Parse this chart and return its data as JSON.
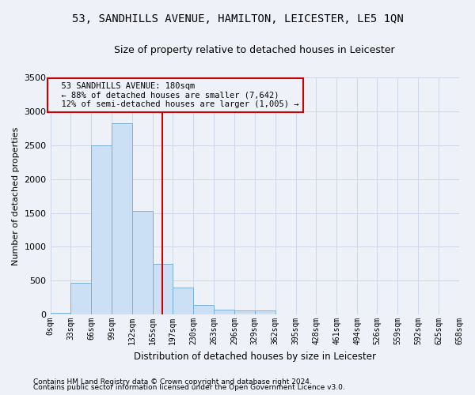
{
  "title": "53, SANDHILLS AVENUE, HAMILTON, LEICESTER, LE5 1QN",
  "subtitle": "Size of property relative to detached houses in Leicester",
  "xlabel": "Distribution of detached houses by size in Leicester",
  "ylabel": "Number of detached properties",
  "footnote1": "Contains HM Land Registry data © Crown copyright and database right 2024.",
  "footnote2": "Contains public sector information licensed under the Open Government Licence v3.0.",
  "annotation_line1": "  53 SANDHILLS AVENUE: 180sqm",
  "annotation_line2": "  ← 88% of detached houses are smaller (7,642)",
  "annotation_line3": "  12% of semi-detached houses are larger (1,005) →",
  "property_size": 180,
  "bin_edges": [
    0,
    33,
    66,
    99,
    132,
    165,
    197,
    230,
    263,
    296,
    329,
    362,
    395,
    428,
    461,
    494,
    526,
    559,
    592,
    625,
    658
  ],
  "bar_heights": [
    25,
    470,
    2500,
    2820,
    1530,
    745,
    395,
    140,
    75,
    55,
    55,
    0,
    0,
    0,
    0,
    0,
    0,
    0,
    0,
    0
  ],
  "bar_color": "#cce0f5",
  "bar_edgecolor": "#7ab0d8",
  "vline_color": "#cc0000",
  "vline_x": 180,
  "annotation_box_edgecolor": "#cc0000",
  "ylim": [
    0,
    3500
  ],
  "yticks": [
    0,
    500,
    1000,
    1500,
    2000,
    2500,
    3000,
    3500
  ],
  "grid_color": "#d0d8e8",
  "bg_color": "#eef2f8",
  "plot_bg_color": "#eef2f8",
  "title_fontsize": 10,
  "subtitle_fontsize": 9,
  "ylabel_fontsize": 8,
  "xlabel_fontsize": 8.5,
  "tick_fontsize": 7,
  "footnote_fontsize": 6.5,
  "annotation_fontsize": 7.5
}
